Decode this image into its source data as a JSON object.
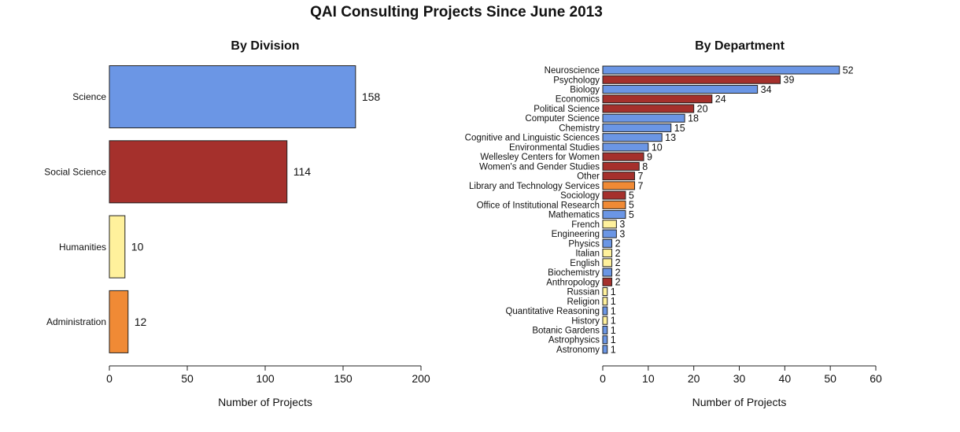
{
  "title": "QAI Consulting Projects Since June 2013",
  "colors": {
    "Science": "#6b96e5",
    "Social Science": "#a5302c",
    "Humanities": "#fff19c",
    "Administration": "#f08a35"
  },
  "chart_data": [
    {
      "type": "bar",
      "orientation": "horizontal",
      "title": "By Division",
      "xlabel": "Number of Projects",
      "xlim": [
        0,
        200
      ],
      "xticks": [
        0,
        50,
        100,
        150,
        200
      ],
      "categories": [
        "Science",
        "Social Science",
        "Humanities",
        "Administration"
      ],
      "values": [
        158,
        114,
        10,
        12
      ],
      "divisions": [
        "Science",
        "Social Science",
        "Humanities",
        "Administration"
      ]
    },
    {
      "type": "bar",
      "orientation": "horizontal",
      "title": "By Department",
      "xlabel": "Number of Projects",
      "xlim": [
        0,
        60
      ],
      "xticks": [
        0,
        10,
        20,
        30,
        40,
        50,
        60
      ],
      "categories": [
        "Neuroscience",
        "Psychology",
        "Biology",
        "Economics",
        "Political Science",
        "Computer Science",
        "Chemistry",
        "Cognitive and Linguistic Sciences",
        "Environmental Studies",
        "Wellesley Centers for Women",
        "Women's and Gender Studies",
        "Other",
        "Library and Technology Services",
        "Sociology",
        "Office of Institutional Research",
        "Mathematics",
        "French",
        "Engineering",
        "Physics",
        "Italian",
        "English",
        "Biochemistry",
        "Anthropology",
        "Russian",
        "Religion",
        "Quantitative Reasoning",
        "History",
        "Botanic Gardens",
        "Astrophysics",
        "Astronomy"
      ],
      "values": [
        52,
        39,
        34,
        24,
        20,
        18,
        15,
        13,
        10,
        9,
        8,
        7,
        7,
        5,
        5,
        5,
        3,
        3,
        2,
        2,
        2,
        2,
        2,
        1,
        1,
        1,
        1,
        1,
        1,
        1
      ],
      "divisions": [
        "Science",
        "Social Science",
        "Science",
        "Social Science",
        "Social Science",
        "Science",
        "Science",
        "Science",
        "Science",
        "Social Science",
        "Social Science",
        "Social Science",
        "Administration",
        "Social Science",
        "Administration",
        "Science",
        "Humanities",
        "Science",
        "Science",
        "Humanities",
        "Humanities",
        "Science",
        "Social Science",
        "Humanities",
        "Humanities",
        "Science",
        "Humanities",
        "Science",
        "Science",
        "Science"
      ]
    }
  ]
}
